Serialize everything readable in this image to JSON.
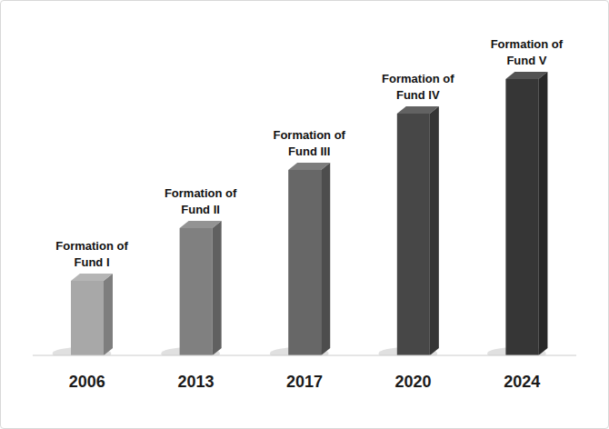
{
  "chart_data": {
    "type": "bar",
    "categories": [
      "2006",
      "2013",
      "2017",
      "2020",
      "2024"
    ],
    "values": [
      82,
      140,
      204,
      266,
      304
    ],
    "annotations": [
      "Formation of Fund I",
      "Formation of Fund II",
      "Formation of Fund III",
      "Formation of Fund IV",
      "Formation of Fund V"
    ],
    "colors": [
      "#a8a8a8",
      "#808080",
      "#676767",
      "#474747",
      "#363636"
    ],
    "ylim": [
      0,
      380
    ],
    "grid": false,
    "tick_labels": "x"
  }
}
